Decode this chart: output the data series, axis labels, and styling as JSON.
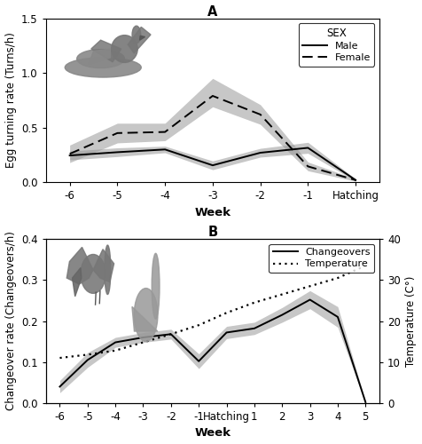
{
  "panel_a": {
    "title": "A",
    "xlabel": "Week",
    "ylabel": "Egg turning rate (Turns/h)",
    "x_labels": [
      "-6",
      "-5",
      "-4",
      "-3",
      "-2",
      "-1",
      "Hatching"
    ],
    "x_numeric": [
      -6,
      -5,
      -4,
      -3,
      -2,
      -1,
      0
    ],
    "male_mean": [
      0.245,
      0.275,
      0.3,
      0.155,
      0.27,
      0.315,
      0.02
    ],
    "male_se_lo": [
      0.04,
      0.04,
      0.03,
      0.04,
      0.04,
      0.05,
      0.01
    ],
    "male_se_hi": [
      0.04,
      0.04,
      0.03,
      0.04,
      0.04,
      0.05,
      0.01
    ],
    "female_mean": [
      0.26,
      0.45,
      0.46,
      0.79,
      0.62,
      0.145,
      0.02
    ],
    "female_se_lo": [
      0.08,
      0.09,
      0.08,
      0.1,
      0.09,
      0.04,
      0.01
    ],
    "female_se_hi": [
      0.08,
      0.09,
      0.08,
      0.16,
      0.09,
      0.04,
      0.01
    ],
    "ylim": [
      0.0,
      1.5
    ],
    "yticks": [
      0.0,
      0.5,
      1.0,
      1.5
    ],
    "shade_color": "#999999",
    "shade_alpha": 0.55,
    "line_color": "#000000"
  },
  "panel_b": {
    "title": "B",
    "xlabel": "Week",
    "ylabel": "Changeover rate (Changeovers/h)",
    "ylabel2": "Temperature (C°)",
    "x_labels": [
      "-6",
      "-5",
      "-4",
      "-3",
      "-2",
      "-1",
      "Hatching",
      "1",
      "2",
      "3",
      "4",
      "5"
    ],
    "x_numeric": [
      -6,
      -5,
      -4,
      -3,
      -2,
      -1,
      0,
      1,
      2,
      3,
      4,
      5
    ],
    "changeover_mean": [
      0.04,
      0.105,
      0.148,
      0.16,
      0.168,
      0.102,
      0.172,
      0.182,
      0.215,
      0.252,
      0.21,
      0.002
    ],
    "changeover_se": [
      0.015,
      0.018,
      0.012,
      0.012,
      0.012,
      0.018,
      0.015,
      0.015,
      0.018,
      0.022,
      0.025,
      0.002
    ],
    "temperature": [
      11.0,
      11.8,
      12.8,
      14.8,
      16.8,
      19.0,
      22.0,
      24.5,
      26.5,
      28.5,
      30.5,
      33.5
    ],
    "ylim": [
      0.0,
      0.4
    ],
    "yticks": [
      0.0,
      0.1,
      0.2,
      0.3,
      0.4
    ],
    "ylim2": [
      0,
      40
    ],
    "yticks2": [
      0,
      10,
      20,
      30,
      40
    ],
    "shade_color": "#999999",
    "shade_alpha": 0.55,
    "line_color": "#000000"
  },
  "figure_bg": "#ffffff",
  "font_size": 8.5
}
